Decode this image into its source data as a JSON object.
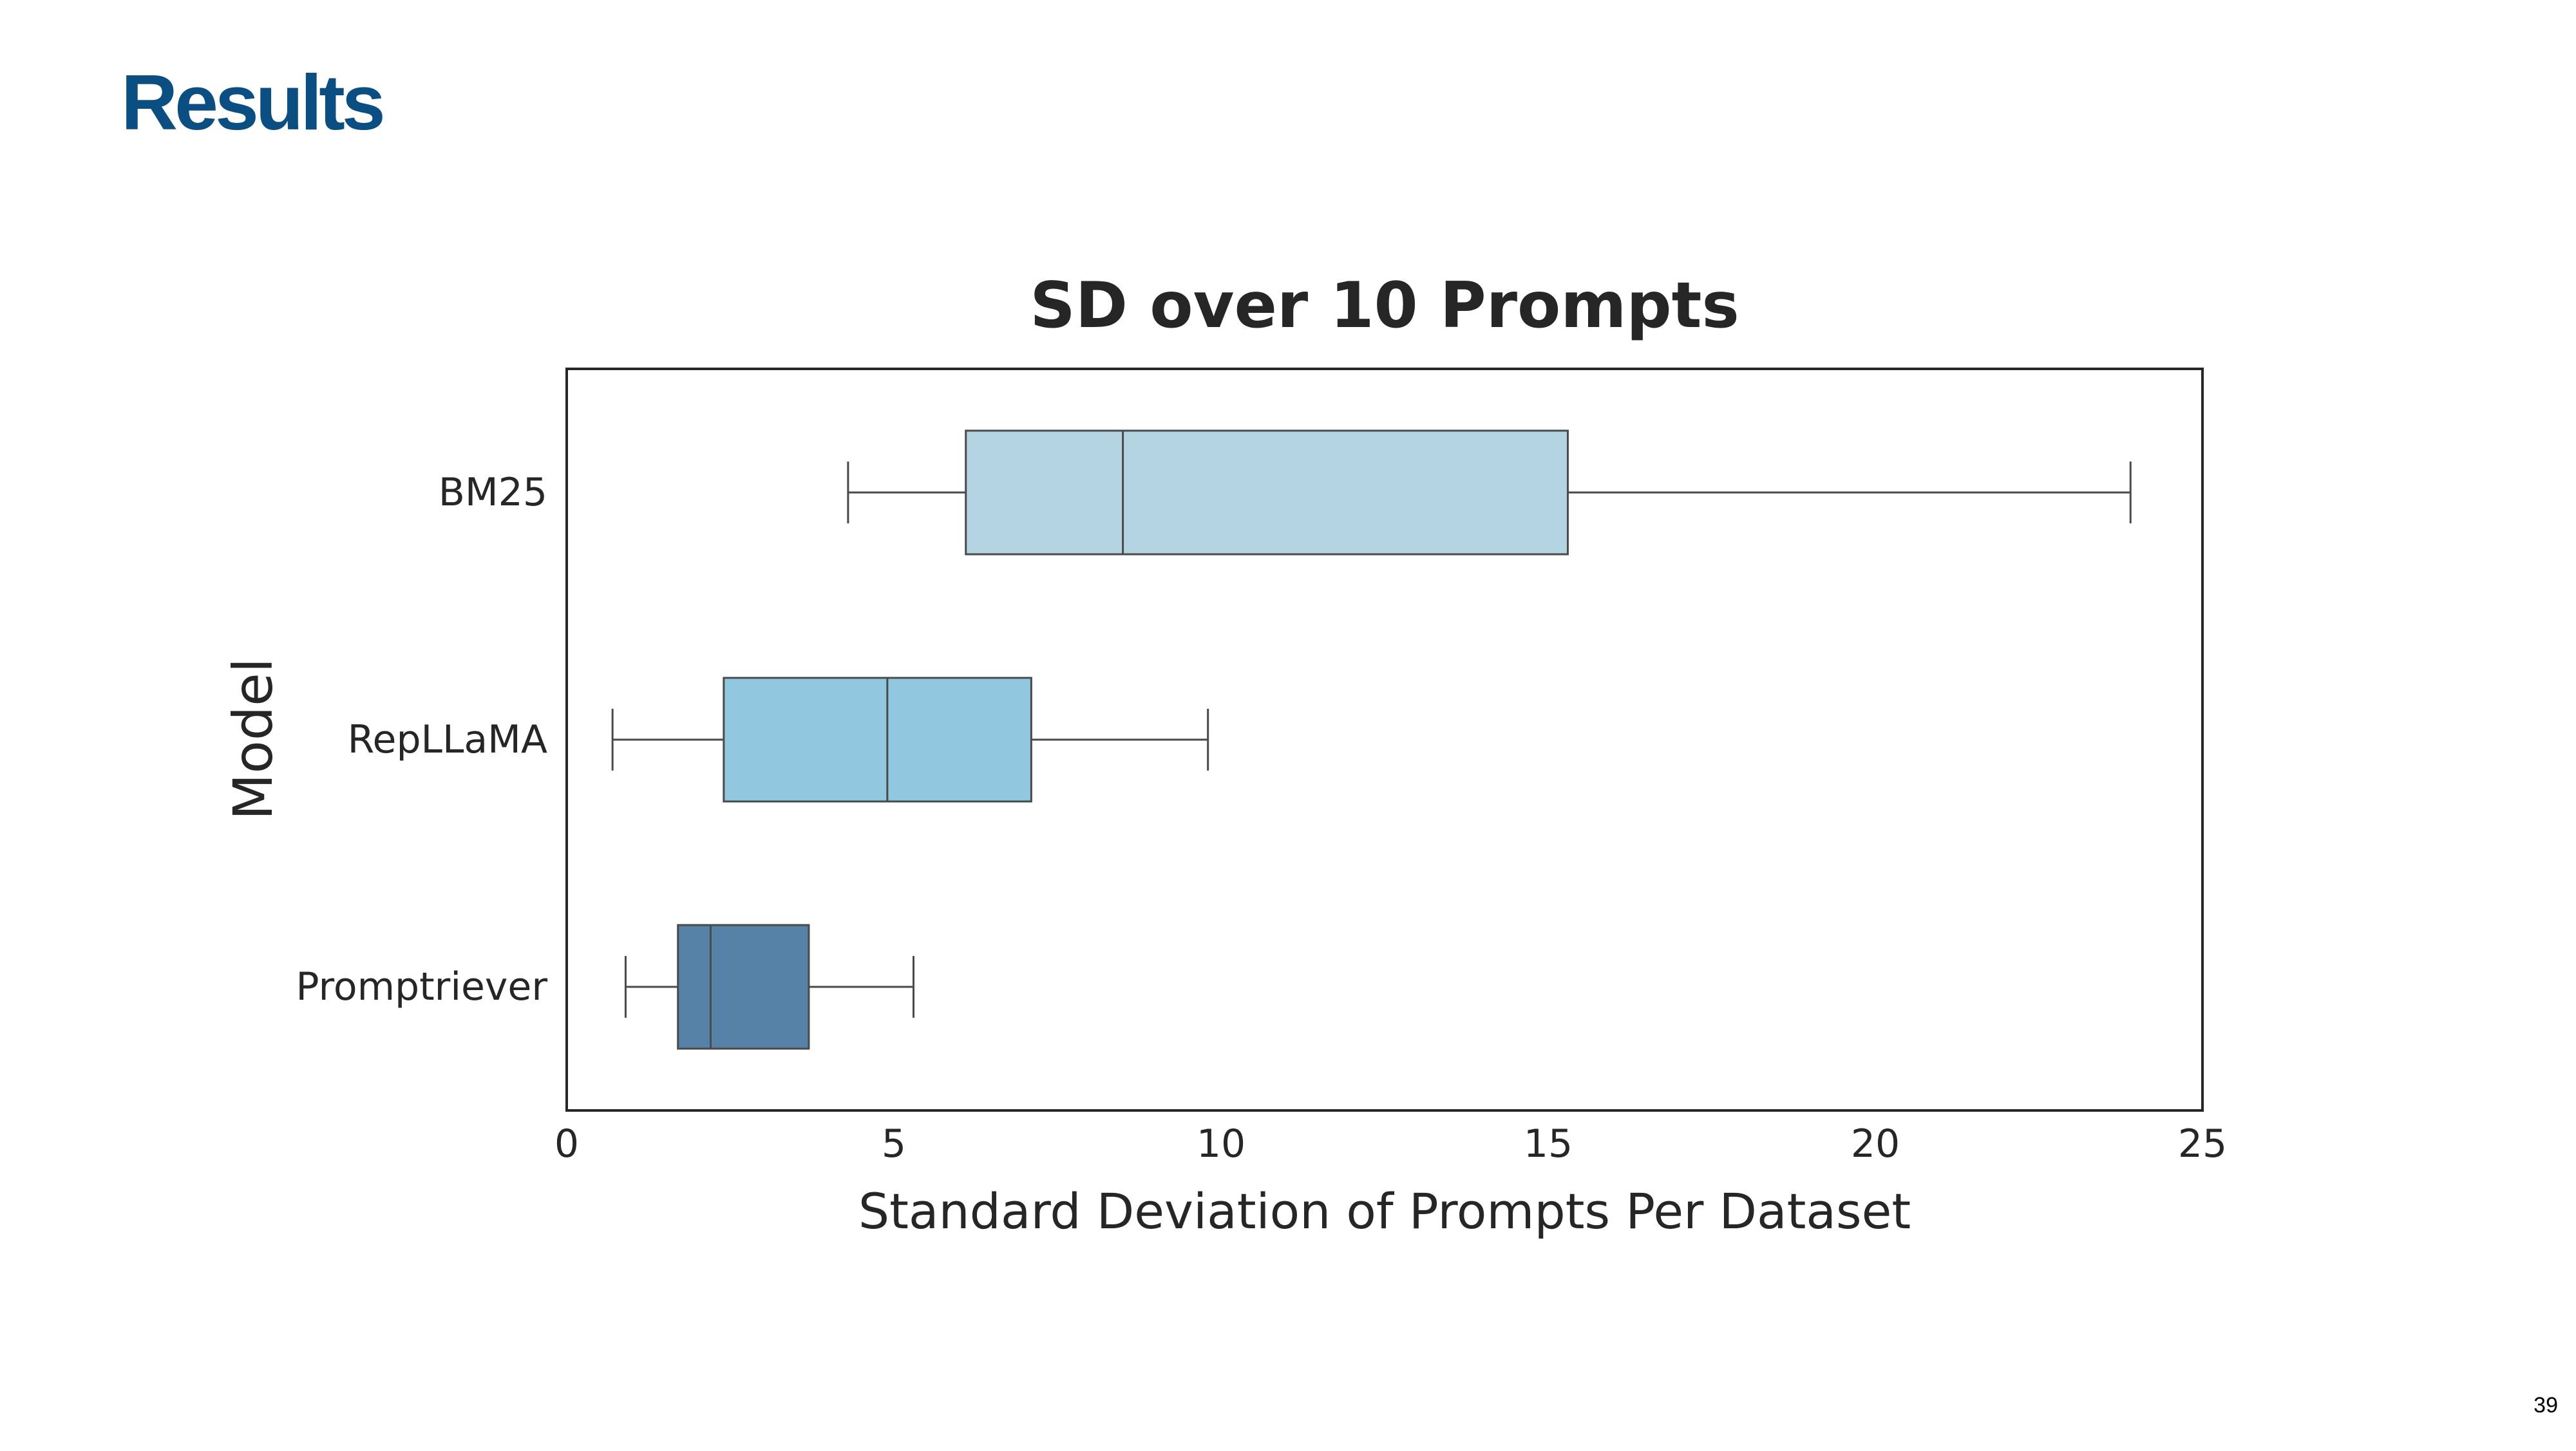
{
  "slide": {
    "title": "Results",
    "page_number": "39"
  },
  "colors": {
    "title": "#0b4f82",
    "text": "#262626",
    "frame": "#262626",
    "whisker": "#4a4a4a"
  },
  "chart_data": {
    "type": "box",
    "orientation": "horizontal",
    "title": "SD over 10 Prompts",
    "xlabel": "Standard Deviation of Prompts Per Dataset",
    "ylabel": "Model",
    "xlim": [
      0,
      25
    ],
    "xticks": [
      0,
      5,
      10,
      15,
      20,
      25
    ],
    "grid": false,
    "categories": [
      "BM25",
      "RepLLaMA",
      "Promptriever"
    ],
    "boxes": [
      {
        "label": "BM25",
        "whisker_low": 4.3,
        "q1": 6.1,
        "median": 8.5,
        "q3": 15.3,
        "whisker_high": 23.9,
        "color": "#b3d4e0"
      },
      {
        "label": "RepLLaMA",
        "whisker_low": 0.7,
        "q1": 2.4,
        "median": 4.9,
        "q3": 7.1,
        "whisker_high": 9.8,
        "color": "#91c7df"
      },
      {
        "label": "Promptriever",
        "whisker_low": 0.9,
        "q1": 1.7,
        "median": 2.2,
        "q3": 3.7,
        "whisker_high": 5.3,
        "color": "#5682a7"
      }
    ]
  }
}
